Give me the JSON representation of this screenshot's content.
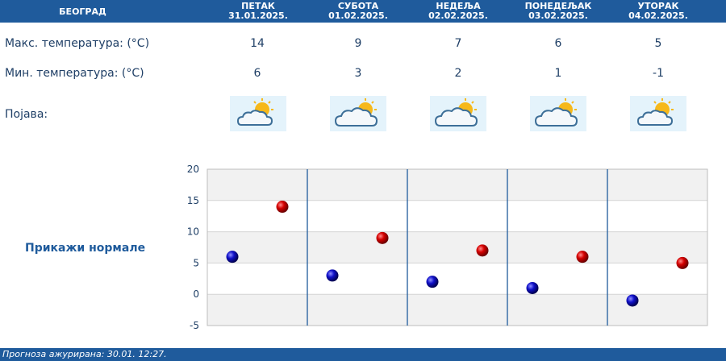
{
  "header": {
    "city": "БЕОГРАД",
    "days": [
      {
        "name": "ПЕТАК",
        "date": "31.01.2025."
      },
      {
        "name": "СУБОТА",
        "date": "01.02.2025."
      },
      {
        "name": "НЕДЕЉА",
        "date": "02.02.2025."
      },
      {
        "name": "ПОНЕДЕЉАК",
        "date": "03.02.2025."
      },
      {
        "name": "УТОРАК",
        "date": "04.02.2025."
      }
    ]
  },
  "rows": {
    "max_label": "Макс. температура: (°C)",
    "min_label": "Мин. температура: (°C)",
    "phenomenon_label": "Појава:",
    "max_values": [
      "14",
      "9",
      "7",
      "6",
      "5"
    ],
    "min_values": [
      "6",
      "3",
      "2",
      "1",
      "-1"
    ],
    "icons": [
      "sun-behind-cloud-icon",
      "cloud-with-sun-icon",
      "cloud-with-sun-icon",
      "cloud-with-sun-icon",
      "sun-behind-cloud-icon"
    ]
  },
  "show_normals_label": "Прикажи нормале",
  "footer": {
    "text": "Прогноза ажурирана:  30.01.  12:27."
  },
  "colors": {
    "header": "#1f5b9c",
    "max_dot": "#cc0000",
    "min_dot": "#0000aa"
  },
  "chart_data": {
    "type": "scatter",
    "ylim": [
      -5,
      20
    ],
    "yticks": [
      "20",
      "15",
      "10",
      "5",
      "0",
      "-5"
    ],
    "yticks_values": [
      20,
      15,
      10,
      5,
      0,
      -5
    ],
    "categories": [
      "ПЕТАК",
      "СУБОТА",
      "НЕДЕЉА",
      "ПОНЕДЕЉАК",
      "УТОРАК"
    ],
    "series": [
      {
        "values": [
          6,
          3,
          2,
          1,
          -1
        ]
      },
      {
        "values": [
          14,
          9,
          7,
          6,
          5
        ]
      }
    ],
    "grid": true
  }
}
